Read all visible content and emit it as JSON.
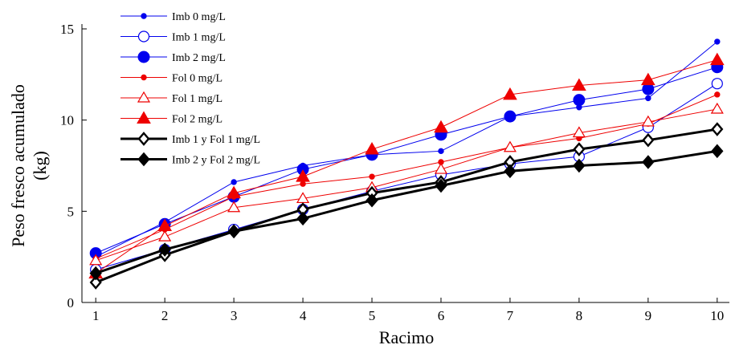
{
  "chart_data": {
    "type": "line",
    "title": "",
    "xlabel": "Racimo",
    "ylabel_lines": [
      "Peso fresco acumulado",
      "(kg)"
    ],
    "x": [
      1,
      2,
      3,
      4,
      5,
      6,
      7,
      8,
      9,
      10
    ],
    "xlim": [
      0.8,
      10.2
    ],
    "ylim": [
      0,
      15
    ],
    "yticks": [
      0,
      5,
      10,
      15
    ],
    "xticks": [
      1,
      2,
      3,
      4,
      5,
      6,
      7,
      8,
      9,
      10
    ],
    "grid": false,
    "legend_position": "top-left",
    "series": [
      {
        "name": "Imb 0 mg/L",
        "color": "#0000ee",
        "marker": "dot",
        "line_width": 1,
        "values": [
          2.5,
          4.4,
          6.6,
          7.5,
          8.1,
          8.3,
          10.2,
          10.7,
          11.2,
          14.3
        ]
      },
      {
        "name": "Imb 1 mg/L",
        "color": "#0000ee",
        "marker": "open-circle",
        "line_width": 1,
        "values": [
          1.8,
          2.9,
          4.0,
          5.1,
          6.1,
          7.0,
          7.6,
          8.0,
          9.6,
          12.0
        ]
      },
      {
        "name": "Imb 2 mg/L",
        "color": "#0000ee",
        "marker": "filled-circle",
        "line_width": 1,
        "values": [
          2.7,
          4.3,
          5.8,
          7.3,
          8.1,
          9.2,
          10.2,
          11.1,
          11.7,
          12.9
        ]
      },
      {
        "name": "Fol 0 mg/L",
        "color": "#ee0000",
        "marker": "dot",
        "line_width": 1,
        "values": [
          2.4,
          4.0,
          5.8,
          6.5,
          6.9,
          7.7,
          8.5,
          9.0,
          9.8,
          11.4
        ]
      },
      {
        "name": "Fol 1 mg/L",
        "color": "#ee0000",
        "marker": "open-triangle",
        "line_width": 1,
        "values": [
          2.3,
          3.6,
          5.2,
          5.7,
          6.3,
          7.3,
          8.5,
          9.3,
          9.9,
          10.6
        ]
      },
      {
        "name": "Fol 2 mg/L",
        "color": "#ee0000",
        "marker": "filled-triangle",
        "line_width": 1,
        "values": [
          1.6,
          4.2,
          6.0,
          6.9,
          8.4,
          9.6,
          11.4,
          11.9,
          12.2,
          13.3
        ]
      },
      {
        "name": "Imb 1 y Fol 1 mg/L",
        "color": "#000000",
        "marker": "open-diamond",
        "line_width": 3,
        "values": [
          1.1,
          2.6,
          3.9,
          5.1,
          6.0,
          6.6,
          7.7,
          8.4,
          8.9,
          9.5
        ]
      },
      {
        "name": "Imb 2 y Fol 2 mg/L",
        "color": "#000000",
        "marker": "filled-diamond",
        "line_width": 3,
        "values": [
          1.6,
          2.9,
          3.9,
          4.6,
          5.6,
          6.4,
          7.2,
          7.5,
          7.7,
          8.3
        ]
      }
    ]
  }
}
